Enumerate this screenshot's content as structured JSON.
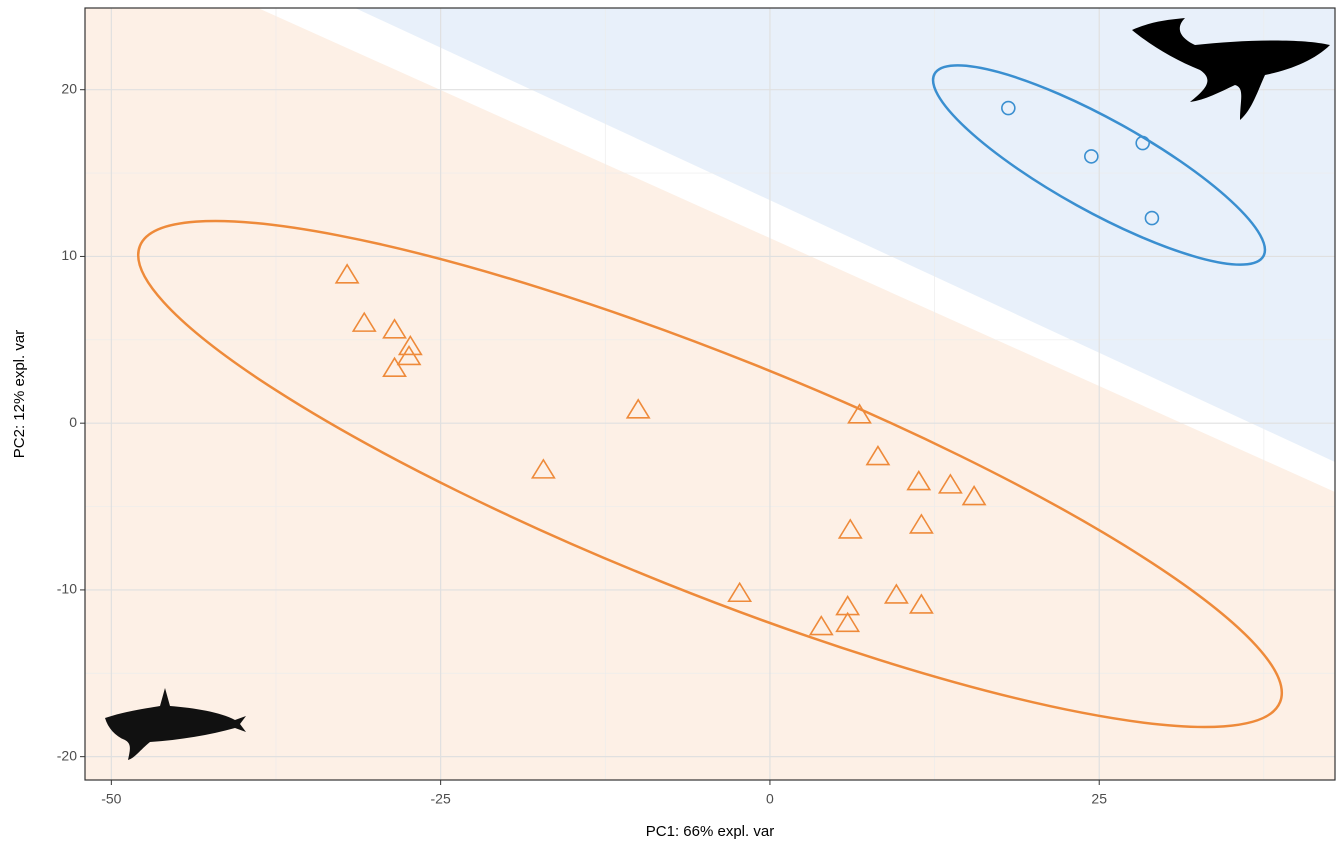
{
  "chart_data": {
    "type": "scatter",
    "x_label": "PC1: 66% expl. var",
    "y_label": "PC2: 12% expl. var",
    "xlim": [
      -52,
      42.9
    ],
    "ylim": [
      -21.4,
      24.9
    ],
    "xticks": [
      -50,
      -25,
      0,
      25
    ],
    "yticks": [
      -20,
      -10,
      0,
      10,
      20
    ],
    "grid": true,
    "series": [
      {
        "color": "#ee8a3a",
        "marker": "triangle",
        "x": [
          -32.1,
          -30.8,
          -28.5,
          -27.3,
          -27.4,
          -28.5,
          -10.0,
          -17.2,
          6.8,
          8.2,
          11.3,
          13.7,
          15.5,
          6.1,
          11.5,
          -2.3,
          9.6,
          11.5,
          5.9,
          5.9,
          3.9
        ],
        "values": [
          8.9,
          6.0,
          5.6,
          4.6,
          4.0,
          3.3,
          0.8,
          -2.8,
          0.5,
          -2.0,
          -3.5,
          -3.7,
          -4.4,
          -6.4,
          -6.1,
          -10.2,
          -10.3,
          -10.9,
          -11.0,
          -12.0,
          -12.2
        ]
      },
      {
        "color": "#3a8fd0",
        "marker": "circle",
        "x": [
          18.1,
          24.4,
          28.3,
          29.0
        ],
        "values": [
          18.9,
          16.0,
          16.8,
          12.3
        ]
      }
    ]
  }
}
